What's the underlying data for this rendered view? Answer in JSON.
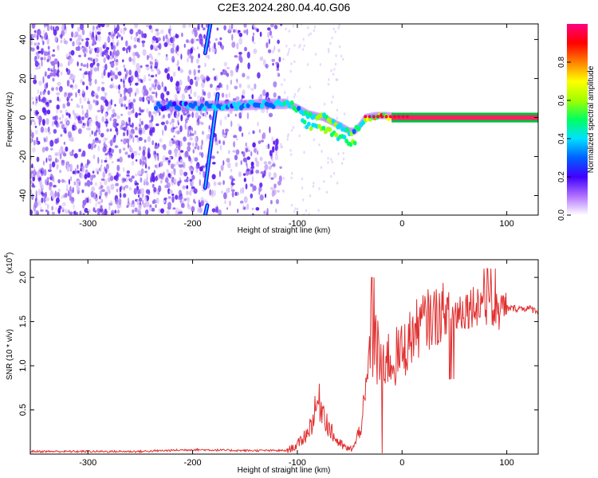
{
  "title": "C2E3.2024.280.04.40.G06",
  "chart_data": [
    {
      "type": "heatmap",
      "xlabel": "Height of straight line (km)",
      "ylabel": "Frequency (Hz)",
      "xlim": [
        -355,
        130
      ],
      "ylim": [
        -50,
        48
      ],
      "xticks": [
        -300,
        -200,
        -100,
        0,
        100
      ],
      "yticks": [
        -40,
        -20,
        0,
        20,
        40
      ],
      "colorbar": {
        "label": "Normalized spectral amplitude",
        "range": [
          0,
          1
        ],
        "ticks": [
          "0.0",
          "0.2",
          "0.4",
          "0.6",
          "0.8"
        ],
        "colors": [
          "#ffffff",
          "#b070ff",
          "#4000ff",
          "#0060ff",
          "#00e0ff",
          "#00ff60",
          "#a0ff00",
          "#ffff00",
          "#ff8000",
          "#ff0000",
          "#ff0080"
        ]
      },
      "main_signal_track": {
        "x": [
          -235,
          -200,
          -160,
          -130,
          -110,
          -100,
          -90,
          -75,
          -60,
          -50,
          -45,
          -40,
          -35,
          -25,
          -15,
          0,
          10,
          50,
          100,
          130
        ],
        "y": [
          6,
          6,
          6,
          7,
          7,
          5,
          2,
          0,
          -4,
          -7,
          -7,
          -4,
          0,
          1,
          1,
          0,
          0,
          0,
          0,
          0
        ],
        "amplitude": [
          0.3,
          0.35,
          0.4,
          0.45,
          0.5,
          0.5,
          0.55,
          0.6,
          0.55,
          0.6,
          0.55,
          0.6,
          0.65,
          0.75,
          0.8,
          0.85,
          0.85,
          0.8,
          0.8,
          0.8
        ]
      },
      "oblique_streaks": [
        {
          "x": [
            -188,
            -176
          ],
          "y": [
            -36,
            12
          ]
        },
        {
          "x": [
            -188,
            -183
          ],
          "y": [
            33,
            48
          ]
        },
        {
          "x": [
            -188,
            -186
          ],
          "y": [
            -50,
            -45
          ]
        }
      ],
      "noise_region_x": [
        -355,
        -115
      ]
    },
    {
      "type": "line",
      "xlabel": "Height of straight line (km)",
      "ylabel": "SNR (10 * v/v)",
      "y_multiplier": "(x10^4)",
      "xlim": [
        -355,
        130
      ],
      "ylim": [
        0,
        2.2
      ],
      "xticks": [
        -300,
        -200,
        -100,
        0,
        100
      ],
      "yticks": [
        "0.5",
        "1.0",
        "1.5",
        "2.0"
      ],
      "series": [
        {
          "color": "#e03030",
          "x": [
            -355,
            -300,
            -250,
            -200,
            -150,
            -110,
            -100,
            -90,
            -85,
            -80,
            -75,
            -70,
            -65,
            -60,
            -55,
            -50,
            -45,
            -40,
            -35,
            -30,
            -25,
            -20,
            -15,
            -10,
            -5,
            0,
            10,
            20,
            30,
            40,
            50,
            60,
            70,
            80,
            90,
            100,
            110,
            120,
            130
          ],
          "values": [
            0.03,
            0.03,
            0.03,
            0.05,
            0.04,
            0.04,
            0.1,
            0.25,
            0.4,
            0.6,
            0.5,
            0.3,
            0.2,
            0.12,
            0.08,
            0.05,
            0.1,
            0.3,
            0.6,
            1.3,
            1.2,
            1.0,
            1.1,
            1.05,
            1.1,
            1.15,
            1.35,
            1.5,
            1.55,
            1.6,
            1.6,
            1.65,
            1.7,
            1.7,
            1.6,
            1.65,
            1.65,
            1.65,
            1.62
          ]
        }
      ]
    }
  ]
}
